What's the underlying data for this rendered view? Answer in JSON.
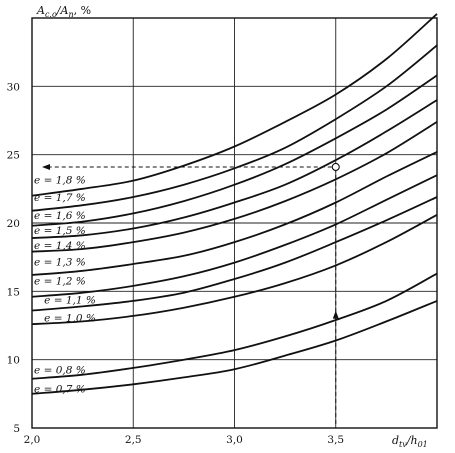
{
  "chart_data": {
    "type": "line",
    "ylabel": "A_c.o/A_n, %",
    "ylabel_main": "A",
    "ylabel_sub1": "c.o",
    "ylabel_mid": "/A",
    "ylabel_sub2": "п",
    "ylabel_tail": ", %",
    "xlabel": "d_tv/h_01",
    "xlabel_main": "d",
    "xlabel_sub1": "tv",
    "xlabel_mid": "/h",
    "xlabel_sub2": "01",
    "xlim": [
      2.0,
      4.0
    ],
    "ylim": [
      5,
      35
    ],
    "x_ticks": [
      {
        "value": 2.0,
        "label": "2,0"
      },
      {
        "value": 2.5,
        "label": "2,5"
      },
      {
        "value": 3.0,
        "label": "3,0"
      },
      {
        "value": 3.5,
        "label": "3,5"
      }
    ],
    "y_ticks": [
      {
        "value": 5,
        "label": "5"
      },
      {
        "value": 10,
        "label": "10"
      },
      {
        "value": 15,
        "label": "15"
      },
      {
        "value": 20,
        "label": "20"
      },
      {
        "value": 25,
        "label": "25"
      },
      {
        "value": 30,
        "label": "30"
      }
    ],
    "grid": true,
    "x": [
      2.0,
      2.25,
      2.5,
      2.75,
      3.0,
      3.25,
      3.5,
      3.75,
      4.0
    ],
    "series": [
      {
        "name": "e = 1,8 %",
        "label_x": 2.01,
        "label_y": 22.9,
        "values": [
          22.0,
          22.5,
          23.1,
          24.2,
          25.6,
          27.4,
          29.4,
          32.0,
          35.3
        ]
      },
      {
        "name": "e = 1,7 %",
        "label_x": 2.01,
        "label_y": 21.6,
        "values": [
          20.9,
          21.3,
          21.9,
          22.8,
          24.0,
          25.5,
          27.6,
          30.0,
          33.0
        ]
      },
      {
        "name": "e = 1,6 %",
        "label_x": 2.01,
        "label_y": 20.3,
        "values": [
          19.8,
          20.1,
          20.7,
          21.6,
          22.8,
          24.3,
          26.2,
          28.3,
          30.8
        ]
      },
      {
        "name": "e = 1,5 %",
        "label_x": 2.01,
        "label_y": 19.2,
        "values": [
          18.9,
          19.1,
          19.6,
          20.4,
          21.5,
          22.8,
          24.6,
          26.7,
          29.0
        ]
      },
      {
        "name": "e = 1,4 %",
        "label_x": 2.01,
        "label_y": 18.1,
        "values": [
          17.9,
          18.1,
          18.6,
          19.3,
          20.3,
          21.6,
          23.2,
          25.1,
          27.4
        ]
      },
      {
        "name": "e = 1,3 %",
        "label_x": 2.01,
        "label_y": 16.9,
        "values": [
          16.2,
          16.5,
          17.0,
          17.6,
          18.6,
          19.9,
          21.5,
          23.4,
          25.2
        ]
      },
      {
        "name": "e = 1,2 %",
        "label_x": 2.01,
        "label_y": 15.5,
        "values": [
          14.6,
          14.9,
          15.4,
          16.1,
          17.1,
          18.4,
          19.9,
          21.7,
          23.5
        ]
      },
      {
        "name": "e = 1,1 %",
        "label_x": 2.06,
        "label_y": 14.1,
        "values": [
          13.6,
          13.9,
          14.3,
          14.9,
          15.9,
          17.1,
          18.6,
          20.2,
          21.9
        ]
      },
      {
        "name": "e = 1,0 %",
        "label_x": 2.06,
        "label_y": 12.8,
        "values": [
          12.6,
          12.8,
          13.2,
          13.8,
          14.6,
          15.6,
          16.9,
          18.6,
          20.6
        ]
      },
      {
        "name": "e = 0,8 %",
        "label_x": 2.01,
        "label_y": 9.0,
        "values": [
          8.6,
          8.9,
          9.4,
          10.0,
          10.7,
          11.7,
          12.9,
          14.3,
          16.3
        ]
      },
      {
        "name": "e = 0,7 %",
        "label_x": 2.01,
        "label_y": 7.6,
        "values": [
          7.5,
          7.8,
          8.2,
          8.7,
          9.3,
          10.3,
          11.4,
          12.8,
          14.3
        ]
      }
    ],
    "example": {
      "x": 3.5,
      "y": 24.1
    }
  }
}
